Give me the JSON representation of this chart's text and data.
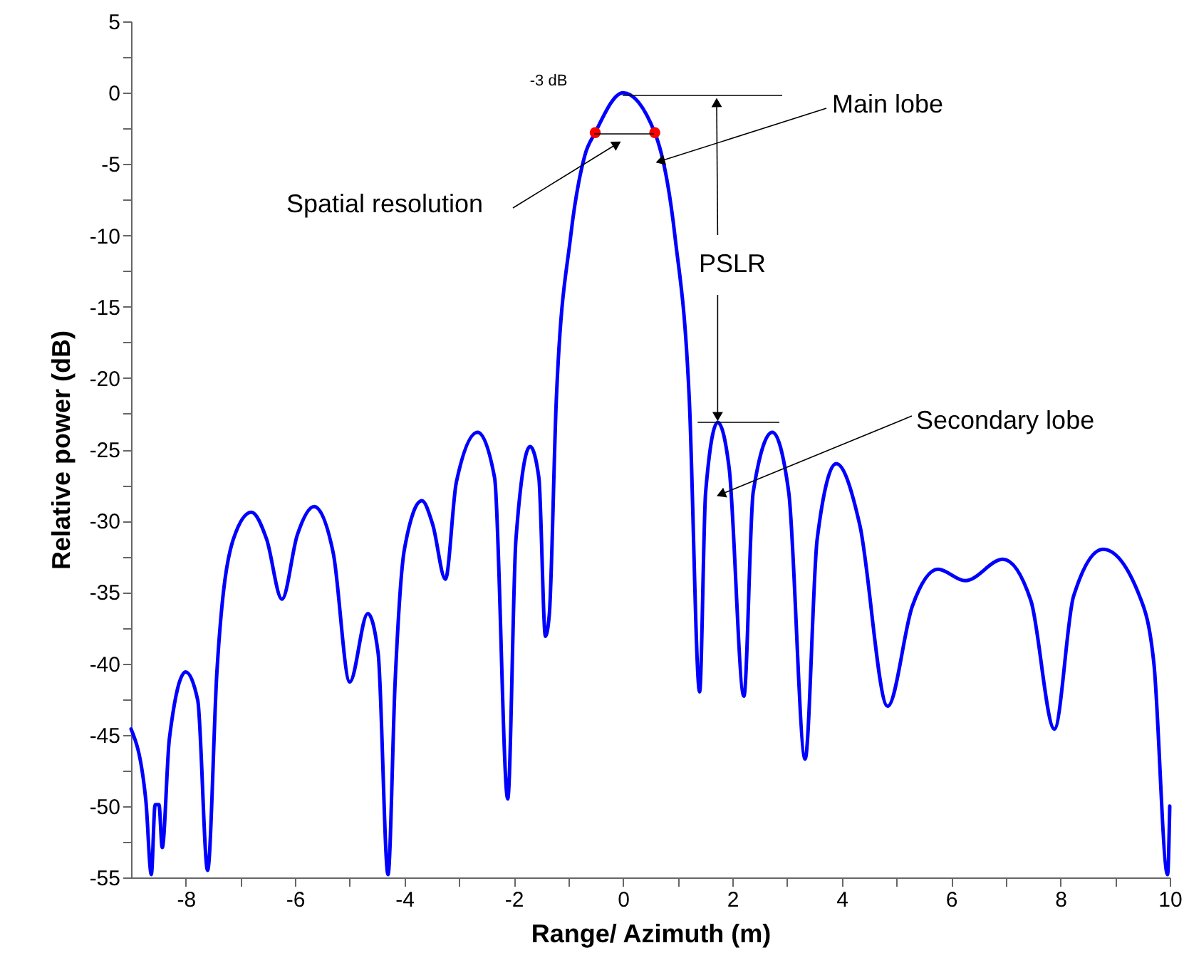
{
  "chart_data": {
    "type": "line",
    "xlabel": "Range/ Azimuth (m)",
    "ylabel": "Relative power (dB)",
    "xlim": [
      -9,
      10
    ],
    "ylim": [
      -55,
      5
    ],
    "xticks": [
      -8,
      {
        "value": -7,
        "label": null
      },
      -6,
      {
        "value": -5,
        "label": null
      },
      -4,
      {
        "value": -3,
        "label": null
      },
      -2,
      {
        "value": -1,
        "label": null
      },
      0,
      {
        "value": 1,
        "label": null
      },
      2,
      {
        "value": 3,
        "label": null
      },
      4,
      {
        "value": 5,
        "label": null
      },
      6,
      {
        "value": 7,
        "label": null
      },
      8,
      {
        "value": 9,
        "label": null
      },
      10
    ],
    "yticks": [
      5,
      {
        "value": 2.5,
        "label": null
      },
      0,
      {
        "value": -2.5,
        "label": null
      },
      -5,
      {
        "value": -7.5,
        "label": null
      },
      -10,
      {
        "value": -12.5,
        "label": null
      },
      -15,
      {
        "value": -17.5,
        "label": null
      },
      -20,
      {
        "value": -22.5,
        "label": null
      },
      -25,
      {
        "value": -27.5,
        "label": null
      },
      -30,
      {
        "value": -32.5,
        "label": null
      },
      -35,
      {
        "value": -37.5,
        "label": null
      },
      -40,
      {
        "value": -42.5,
        "label": null
      },
      -45,
      {
        "value": -47.5,
        "label": null
      },
      -50,
      {
        "value": -52.5,
        "label": null
      },
      -55
    ],
    "grid": false,
    "series": [
      {
        "color": "#0000ff",
        "x": [
          -9.0,
          -8.73,
          -8.63,
          -8.56,
          -8.49,
          -8.43,
          -8.3,
          -8.0,
          -7.78,
          -7.6,
          -7.43,
          -7.13,
          -6.8,
          -6.52,
          -6.24,
          -5.96,
          -5.65,
          -5.3,
          -5.0,
          -4.67,
          -4.48,
          -4.3,
          -4.17,
          -4.0,
          -3.68,
          -3.48,
          -3.25,
          -3.05,
          -2.66,
          -2.35,
          -2.11,
          -1.96,
          -1.7,
          -1.54,
          -1.42,
          -1.35,
          -1.22,
          -0.96,
          -0.7,
          -0.51,
          0,
          0.58,
          0.95,
          1.21,
          1.4,
          1.51,
          1.73,
          1.94,
          2.21,
          2.38,
          2.73,
          3.03,
          3.33,
          3.55,
          3.9,
          4.33,
          4.84,
          5.29,
          5.76,
          6.26,
          6.95,
          7.46,
          7.89,
          8.24,
          8.78,
          9.45,
          9.71,
          9.96,
          10.0
        ],
        "values": [
          -44.6,
          -49.6,
          -54.8,
          -49.9,
          -49.9,
          -52.9,
          -45.3,
          -40.6,
          -42.6,
          -54.5,
          -40.6,
          -31.3,
          -29.4,
          -31.3,
          -35.5,
          -31.0,
          -29.0,
          -32.3,
          -41.3,
          -36.5,
          -39.3,
          -54.8,
          -41.3,
          -32.0,
          -28.6,
          -30.3,
          -34.1,
          -27.3,
          -23.8,
          -27.0,
          -49.5,
          -31.3,
          -24.8,
          -27.0,
          -38.1,
          -36.6,
          -21.4,
          -10.1,
          -4.4,
          -2.8,
          0,
          -2.8,
          -10.1,
          -21.4,
          -42.0,
          -28.0,
          -23.1,
          -26.3,
          -42.3,
          -28.0,
          -23.8,
          -28.0,
          -46.7,
          -31.3,
          -26.0,
          -30.3,
          -43.0,
          -36.0,
          -33.4,
          -34.2,
          -32.7,
          -35.6,
          -44.6,
          -35.3,
          -32.0,
          -35.3,
          -40.0,
          -54.8,
          -50.0
        ]
      },
      {
        "type": "scatter",
        "color": "#ff0000",
        "marker": "circle",
        "x": [
          -0.51,
          0.58
        ],
        "values": [
          -2.8,
          -2.8
        ]
      }
    ],
    "annotations": [
      "-3 dB",
      "Spatial resolution",
      {
        "text": "Main lobe",
        "x": 0.6,
        "y": -4.6
      },
      {
        "text": "PSLR",
        "x": 1.73,
        "y": -23.1
      },
      "Secondary lobe"
    ]
  }
}
